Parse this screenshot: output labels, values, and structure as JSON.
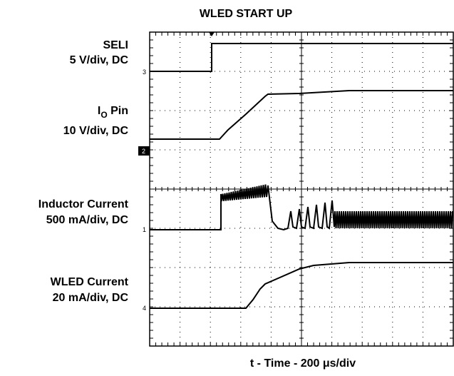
{
  "title": "WLED START UP",
  "channels": [
    {
      "name": "SELI",
      "scale": "5 V/div, DC",
      "marker": "3"
    },
    {
      "name": "I",
      "subscript": "O",
      "name_suffix": " Pin",
      "scale": "10 V/div, DC",
      "marker": "2"
    },
    {
      "name": "Inductor Current",
      "scale": "500 mA/div, DC",
      "marker": "1"
    },
    {
      "name": "WLED Current",
      "scale": "20 mA/div, DC",
      "marker": "4"
    }
  ],
  "x_label": "t - Time - 200 μs/div"
}
